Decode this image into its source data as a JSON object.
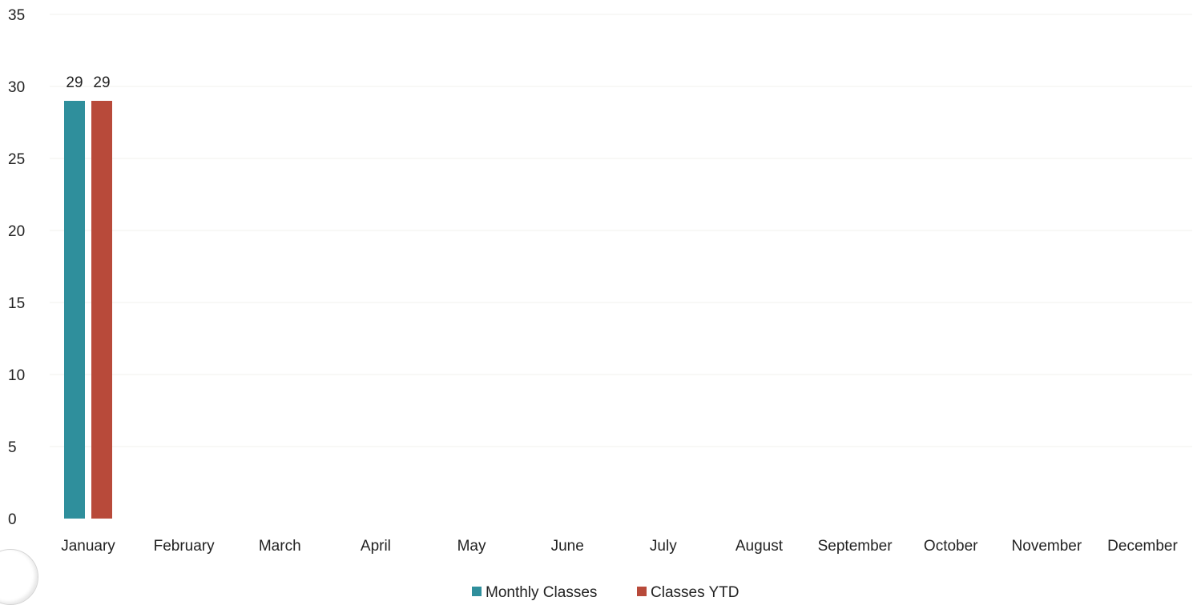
{
  "chart_data": {
    "type": "bar",
    "categories": [
      "January",
      "February",
      "March",
      "April",
      "May",
      "June",
      "July",
      "August",
      "September",
      "October",
      "November",
      "December"
    ],
    "series": [
      {
        "name": "Monthly Classes",
        "color": "#2f8f9c",
        "values": [
          29,
          null,
          null,
          null,
          null,
          null,
          null,
          null,
          null,
          null,
          null,
          null
        ]
      },
      {
        "name": "Classes YTD",
        "color": "#b84a3a",
        "values": [
          29,
          null,
          null,
          null,
          null,
          null,
          null,
          null,
          null,
          null,
          null,
          null
        ]
      }
    ],
    "data_labels": [
      "29",
      "29"
    ],
    "yticks": [
      "0",
      "5",
      "10",
      "15",
      "20",
      "25",
      "30",
      "35"
    ],
    "ylim": [
      0,
      35
    ],
    "grid": true,
    "legend": "bottom-center"
  }
}
